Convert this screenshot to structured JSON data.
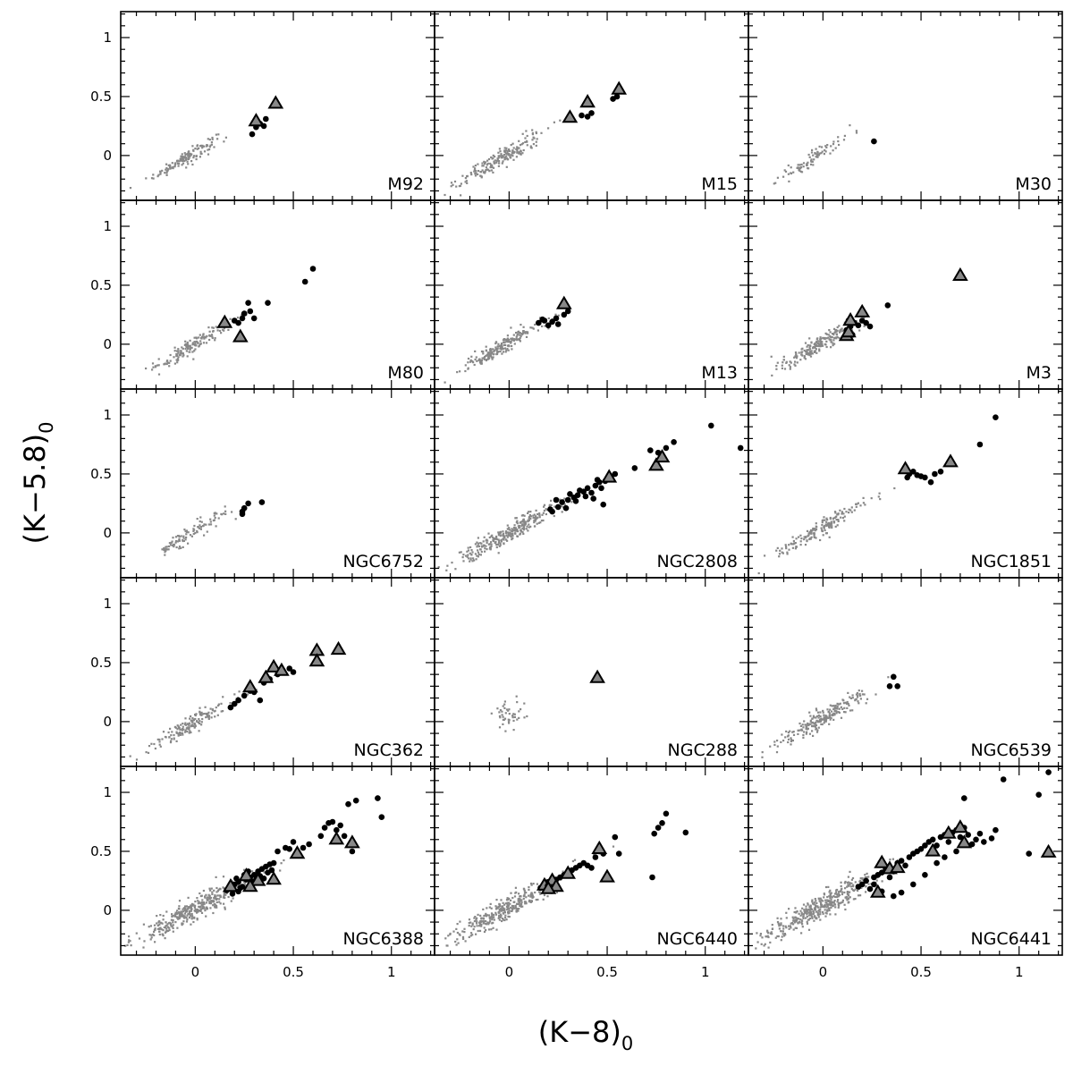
{
  "figure": {
    "xlabel_main": "(K−8)",
    "xlabel_sub": "0",
    "ylabel_main": "(K−5.8)",
    "ylabel_sub": "0",
    "xlim": [
      -0.38,
      1.22
    ],
    "ylim": [
      -0.38,
      1.22
    ],
    "x_ticks": [
      "0",
      "0.5",
      "1"
    ],
    "y_ticks": [
      "0",
      "0.5",
      "1"
    ],
    "grid": false,
    "colors": {
      "background_points": "#888888",
      "highlight_points": "#000000",
      "triangle_fill": "#888888"
    }
  },
  "chart_data": [
    {
      "type": "scatter",
      "label": "M92",
      "cloud": {
        "cx": -0.05,
        "cy": -0.02,
        "sx": 0.08,
        "sy": 0.03,
        "slope": 0.95,
        "n": 140
      },
      "dots": [
        [
          0.29,
          0.18
        ],
        [
          0.33,
          0.27
        ],
        [
          0.35,
          0.25
        ],
        [
          0.36,
          0.31
        ],
        [
          0.31,
          0.24
        ]
      ],
      "triangles": [
        [
          0.31,
          0.29
        ],
        [
          0.41,
          0.44
        ]
      ]
    },
    {
      "type": "scatter",
      "label": "M15",
      "cloud": {
        "cx": -0.05,
        "cy": -0.03,
        "sx": 0.11,
        "sy": 0.04,
        "slope": 0.95,
        "n": 200
      },
      "dots": [
        [
          0.37,
          0.34
        ],
        [
          0.4,
          0.33
        ],
        [
          0.42,
          0.36
        ],
        [
          0.53,
          0.48
        ],
        [
          0.55,
          0.5
        ]
      ],
      "triangles": [
        [
          0.31,
          0.32
        ],
        [
          0.4,
          0.45
        ],
        [
          0.56,
          0.56
        ]
      ]
    },
    {
      "type": "scatter",
      "label": "M30",
      "cloud": {
        "cx": -0.05,
        "cy": -0.02,
        "sx": 0.1,
        "sy": 0.035,
        "slope": 1.0,
        "n": 90
      },
      "dots": [
        [
          0.26,
          0.12
        ]
      ],
      "triangles": []
    },
    {
      "type": "scatter",
      "label": "M80",
      "cloud": {
        "cx": -0.02,
        "cy": -0.02,
        "sx": 0.1,
        "sy": 0.035,
        "slope": 0.95,
        "n": 150
      },
      "dots": [
        [
          0.2,
          0.2
        ],
        [
          0.22,
          0.18
        ],
        [
          0.24,
          0.22
        ],
        [
          0.25,
          0.26
        ],
        [
          0.27,
          0.35
        ],
        [
          0.28,
          0.28
        ],
        [
          0.3,
          0.22
        ],
        [
          0.37,
          0.35
        ],
        [
          0.56,
          0.53
        ],
        [
          0.6,
          0.64
        ]
      ],
      "triangles": [
        [
          0.15,
          0.18
        ],
        [
          0.23,
          0.06
        ]
      ]
    },
    {
      "type": "scatter",
      "label": "M13",
      "cloud": {
        "cx": -0.04,
        "cy": -0.02,
        "sx": 0.1,
        "sy": 0.035,
        "slope": 0.95,
        "n": 200
      },
      "dots": [
        [
          0.15,
          0.18
        ],
        [
          0.18,
          0.2
        ],
        [
          0.2,
          0.16
        ],
        [
          0.22,
          0.19
        ],
        [
          0.24,
          0.22
        ],
        [
          0.25,
          0.17
        ],
        [
          0.28,
          0.25
        ],
        [
          0.3,
          0.28
        ],
        [
          0.17,
          0.21
        ]
      ],
      "triangles": [
        [
          0.28,
          0.34
        ]
      ]
    },
    {
      "type": "scatter",
      "label": "M3",
      "cloud": {
        "cx": -0.04,
        "cy": -0.02,
        "sx": 0.1,
        "sy": 0.035,
        "slope": 0.95,
        "n": 190
      },
      "dots": [
        [
          0.12,
          0.12
        ],
        [
          0.14,
          0.15
        ],
        [
          0.16,
          0.18
        ],
        [
          0.18,
          0.16
        ],
        [
          0.2,
          0.2
        ],
        [
          0.22,
          0.18
        ],
        [
          0.24,
          0.15
        ],
        [
          0.15,
          0.08
        ],
        [
          0.13,
          0.2
        ],
        [
          0.33,
          0.33
        ]
      ],
      "triangles": [
        [
          0.12,
          0.07
        ],
        [
          0.14,
          0.2
        ],
        [
          0.2,
          0.27
        ],
        [
          0.13,
          0.1
        ],
        [
          0.7,
          0.58
        ]
      ]
    },
    {
      "type": "scatter",
      "label": "NGC6752",
      "cloud": {
        "cx": -0.02,
        "cy": 0.0,
        "sx": 0.09,
        "sy": 0.035,
        "slope": 0.95,
        "n": 100
      },
      "dots": [
        [
          0.24,
          0.18
        ],
        [
          0.25,
          0.21
        ],
        [
          0.27,
          0.25
        ],
        [
          0.34,
          0.26
        ],
        [
          0.24,
          0.16
        ]
      ],
      "triangles": []
    },
    {
      "type": "scatter",
      "label": "NGC2808",
      "cloud": {
        "cx": 0.0,
        "cy": 0.0,
        "sx": 0.14,
        "sy": 0.04,
        "slope": 0.9,
        "n": 300
      },
      "dots": [
        [
          0.22,
          0.18
        ],
        [
          0.25,
          0.22
        ],
        [
          0.27,
          0.26
        ],
        [
          0.3,
          0.28
        ],
        [
          0.33,
          0.3
        ],
        [
          0.35,
          0.32
        ],
        [
          0.38,
          0.35
        ],
        [
          0.4,
          0.38
        ],
        [
          0.42,
          0.34
        ],
        [
          0.44,
          0.4
        ],
        [
          0.46,
          0.43
        ],
        [
          0.47,
          0.38
        ],
        [
          0.49,
          0.44
        ],
        [
          0.52,
          0.48
        ],
        [
          0.54,
          0.5
        ],
        [
          0.29,
          0.21
        ],
        [
          0.34,
          0.27
        ],
        [
          0.39,
          0.31
        ],
        [
          0.43,
          0.29
        ],
        [
          0.31,
          0.33
        ],
        [
          0.36,
          0.36
        ],
        [
          0.24,
          0.28
        ],
        [
          0.45,
          0.45
        ],
        [
          0.64,
          0.55
        ],
        [
          0.72,
          0.7
        ],
        [
          0.76,
          0.68
        ],
        [
          0.8,
          0.72
        ],
        [
          0.84,
          0.77
        ],
        [
          1.03,
          0.91
        ],
        [
          1.18,
          0.72
        ],
        [
          0.48,
          0.24
        ],
        [
          0.21,
          0.2
        ]
      ],
      "triangles": [
        [
          0.51,
          0.47
        ],
        [
          0.75,
          0.57
        ],
        [
          0.78,
          0.64
        ]
      ]
    },
    {
      "type": "scatter",
      "label": "NGC1851",
      "cloud": {
        "cx": -0.02,
        "cy": 0.03,
        "sx": 0.11,
        "sy": 0.04,
        "slope": 0.95,
        "n": 170
      },
      "dots": [
        [
          0.44,
          0.5
        ],
        [
          0.46,
          0.52
        ],
        [
          0.48,
          0.49
        ],
        [
          0.5,
          0.48
        ],
        [
          0.52,
          0.47
        ],
        [
          0.55,
          0.43
        ],
        [
          0.57,
          0.5
        ],
        [
          0.6,
          0.52
        ],
        [
          0.8,
          0.75
        ],
        [
          0.88,
          0.98
        ],
        [
          0.43,
          0.47
        ]
      ],
      "triangles": [
        [
          0.42,
          0.54
        ],
        [
          0.65,
          0.6
        ]
      ]
    },
    {
      "type": "scatter",
      "label": "NGC362",
      "cloud": {
        "cx": -0.02,
        "cy": -0.02,
        "sx": 0.1,
        "sy": 0.035,
        "slope": 0.95,
        "n": 160
      },
      "dots": [
        [
          0.18,
          0.12
        ],
        [
          0.2,
          0.15
        ],
        [
          0.22,
          0.18
        ],
        [
          0.25,
          0.22
        ],
        [
          0.28,
          0.26
        ],
        [
          0.3,
          0.25
        ],
        [
          0.33,
          0.18
        ],
        [
          0.35,
          0.33
        ],
        [
          0.38,
          0.36
        ],
        [
          0.42,
          0.4
        ],
        [
          0.44,
          0.42
        ],
        [
          0.48,
          0.45
        ],
        [
          0.5,
          0.42
        ]
      ],
      "triangles": [
        [
          0.28,
          0.29
        ],
        [
          0.36,
          0.37
        ],
        [
          0.4,
          0.46
        ],
        [
          0.44,
          0.43
        ],
        [
          0.62,
          0.6
        ],
        [
          0.62,
          0.51
        ],
        [
          0.73,
          0.61
        ]
      ]
    },
    {
      "type": "scatter",
      "label": "NGC288",
      "cloud": {
        "cx": 0.0,
        "cy": 0.05,
        "sx": 0.035,
        "sy": 0.06,
        "slope": 0.2,
        "n": 45
      },
      "dots": [],
      "triangles": [
        [
          0.45,
          0.37
        ]
      ]
    },
    {
      "type": "scatter",
      "label": "NGC6539",
      "cloud": {
        "cx": 0.0,
        "cy": 0.03,
        "sx": 0.12,
        "sy": 0.04,
        "slope": 0.95,
        "n": 220
      },
      "dots": [
        [
          0.34,
          0.3
        ],
        [
          0.36,
          0.38
        ],
        [
          0.38,
          0.3
        ]
      ],
      "triangles": []
    },
    {
      "type": "scatter",
      "label": "NGC6388",
      "cloud": {
        "cx": 0.0,
        "cy": 0.02,
        "sx": 0.15,
        "sy": 0.05,
        "slope": 0.9,
        "n": 380
      },
      "dots": [
        [
          0.16,
          0.17
        ],
        [
          0.18,
          0.2
        ],
        [
          0.2,
          0.22
        ],
        [
          0.22,
          0.24
        ],
        [
          0.24,
          0.2
        ],
        [
          0.26,
          0.26
        ],
        [
          0.28,
          0.28
        ],
        [
          0.3,
          0.3
        ],
        [
          0.32,
          0.33
        ],
        [
          0.34,
          0.35
        ],
        [
          0.36,
          0.37
        ],
        [
          0.38,
          0.39
        ],
        [
          0.4,
          0.4
        ],
        [
          0.22,
          0.16
        ],
        [
          0.25,
          0.3
        ],
        [
          0.29,
          0.22
        ],
        [
          0.31,
          0.26
        ],
        [
          0.33,
          0.29
        ],
        [
          0.27,
          0.33
        ],
        [
          0.35,
          0.27
        ],
        [
          0.37,
          0.32
        ],
        [
          0.39,
          0.34
        ],
        [
          0.21,
          0.27
        ],
        [
          0.19,
          0.14
        ],
        [
          0.23,
          0.19
        ],
        [
          0.42,
          0.5
        ],
        [
          0.46,
          0.53
        ],
        [
          0.48,
          0.52
        ],
        [
          0.5,
          0.58
        ],
        [
          0.55,
          0.53
        ],
        [
          0.58,
          0.56
        ],
        [
          0.64,
          0.63
        ],
        [
          0.66,
          0.7
        ],
        [
          0.68,
          0.74
        ],
        [
          0.7,
          0.75
        ],
        [
          0.72,
          0.68
        ],
        [
          0.74,
          0.72
        ],
        [
          0.76,
          0.63
        ],
        [
          0.78,
          0.9
        ],
        [
          0.82,
          0.93
        ],
        [
          0.93,
          0.95
        ],
        [
          0.95,
          0.79
        ],
        [
          0.8,
          0.5
        ],
        [
          0.3,
          0.24
        ]
      ],
      "triangles": [
        [
          0.18,
          0.2
        ],
        [
          0.26,
          0.29
        ],
        [
          0.32,
          0.25
        ],
        [
          0.4,
          0.26
        ],
        [
          0.52,
          0.48
        ],
        [
          0.72,
          0.6
        ],
        [
          0.8,
          0.57
        ],
        [
          0.28,
          0.2
        ]
      ]
    },
    {
      "type": "scatter",
      "label": "NGC6440",
      "cloud": {
        "cx": -0.01,
        "cy": 0.02,
        "sx": 0.14,
        "sy": 0.05,
        "slope": 0.9,
        "n": 320
      },
      "dots": [
        [
          0.16,
          0.19
        ],
        [
          0.18,
          0.22
        ],
        [
          0.2,
          0.24
        ],
        [
          0.22,
          0.2
        ],
        [
          0.24,
          0.26
        ],
        [
          0.26,
          0.28
        ],
        [
          0.28,
          0.3
        ],
        [
          0.3,
          0.32
        ],
        [
          0.32,
          0.34
        ],
        [
          0.34,
          0.36
        ],
        [
          0.36,
          0.38
        ],
        [
          0.38,
          0.4
        ],
        [
          0.4,
          0.38
        ],
        [
          0.42,
          0.36
        ],
        [
          0.44,
          0.45
        ],
        [
          0.46,
          0.5
        ],
        [
          0.48,
          0.48
        ],
        [
          0.54,
          0.62
        ],
        [
          0.56,
          0.48
        ],
        [
          0.74,
          0.65
        ],
        [
          0.76,
          0.7
        ],
        [
          0.78,
          0.74
        ],
        [
          0.8,
          0.82
        ],
        [
          0.9,
          0.66
        ],
        [
          0.73,
          0.28
        ]
      ],
      "triangles": [
        [
          0.18,
          0.21
        ],
        [
          0.22,
          0.25
        ],
        [
          0.24,
          0.2
        ],
        [
          0.3,
          0.31
        ],
        [
          0.46,
          0.52
        ],
        [
          0.5,
          0.28
        ],
        [
          0.2,
          0.18
        ]
      ]
    },
    {
      "type": "scatter",
      "label": "NGC6441",
      "cloud": {
        "cx": -0.01,
        "cy": 0.03,
        "sx": 0.16,
        "sy": 0.05,
        "slope": 0.9,
        "n": 400
      },
      "dots": [
        [
          0.18,
          0.2
        ],
        [
          0.2,
          0.22
        ],
        [
          0.22,
          0.25
        ],
        [
          0.24,
          0.18
        ],
        [
          0.26,
          0.28
        ],
        [
          0.28,
          0.3
        ],
        [
          0.3,
          0.32
        ],
        [
          0.32,
          0.35
        ],
        [
          0.34,
          0.37
        ],
        [
          0.36,
          0.33
        ],
        [
          0.38,
          0.4
        ],
        [
          0.4,
          0.42
        ],
        [
          0.42,
          0.38
        ],
        [
          0.44,
          0.45
        ],
        [
          0.46,
          0.48
        ],
        [
          0.48,
          0.5
        ],
        [
          0.5,
          0.52
        ],
        [
          0.52,
          0.55
        ],
        [
          0.54,
          0.58
        ],
        [
          0.56,
          0.6
        ],
        [
          0.58,
          0.55
        ],
        [
          0.6,
          0.62
        ],
        [
          0.62,
          0.64
        ],
        [
          0.64,
          0.58
        ],
        [
          0.66,
          0.66
        ],
        [
          0.68,
          0.68
        ],
        [
          0.7,
          0.62
        ],
        [
          0.72,
          0.7
        ],
        [
          0.74,
          0.64
        ],
        [
          0.76,
          0.56
        ],
        [
          0.78,
          0.6
        ],
        [
          0.8,
          0.65
        ],
        [
          0.82,
          0.58
        ],
        [
          0.86,
          0.61
        ],
        [
          0.88,
          0.68
        ],
        [
          0.3,
          0.16
        ],
        [
          0.36,
          0.12
        ],
        [
          0.4,
          0.15
        ],
        [
          0.46,
          0.22
        ],
        [
          0.52,
          0.3
        ],
        [
          0.58,
          0.4
        ],
        [
          0.62,
          0.45
        ],
        [
          0.68,
          0.5
        ],
        [
          0.26,
          0.22
        ],
        [
          0.34,
          0.28
        ],
        [
          0.72,
          0.95
        ],
        [
          0.92,
          1.11
        ],
        [
          1.05,
          0.48
        ],
        [
          1.1,
          0.98
        ],
        [
          1.15,
          1.17
        ]
      ],
      "triangles": [
        [
          0.3,
          0.4
        ],
        [
          0.34,
          0.35
        ],
        [
          0.28,
          0.15
        ],
        [
          0.38,
          0.36
        ],
        [
          0.56,
          0.5
        ],
        [
          0.64,
          0.65
        ],
        [
          0.7,
          0.7
        ],
        [
          0.72,
          0.57
        ],
        [
          1.15,
          0.49
        ]
      ]
    }
  ]
}
